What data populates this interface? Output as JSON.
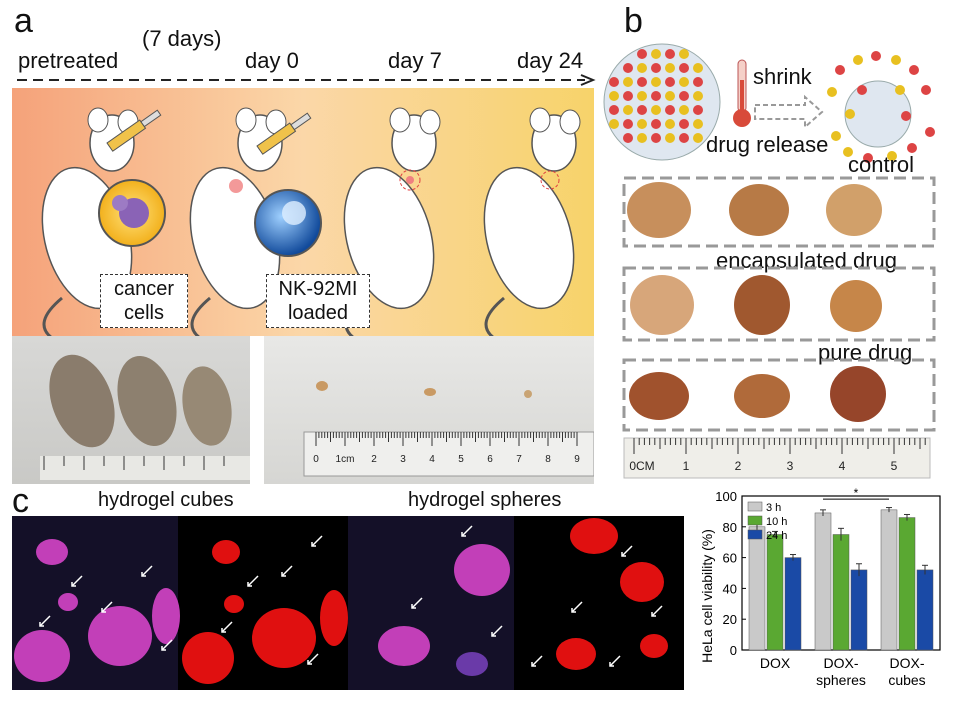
{
  "panel_a": {
    "letter": "a",
    "timeline": [
      {
        "label": "pretreated"
      },
      {
        "label": "(7 days)"
      },
      {
        "label": "day 0"
      },
      {
        "label": "day 7"
      },
      {
        "label": "day 24"
      }
    ],
    "box_cancer": [
      "cancer",
      "cells"
    ],
    "box_nk": [
      "NK-92MI",
      "loaded"
    ],
    "ruler_left_ticks": [
      "0",
      "1cm",
      "2",
      "3",
      "4",
      "5",
      "6",
      "7",
      "8",
      "9"
    ]
  },
  "panel_b": {
    "letter": "b",
    "shrink_label": "shrink",
    "drug_release_label": "drug release",
    "groups": [
      "control",
      "encapsulated drug",
      "pure drug"
    ],
    "ruler_ticks": [
      "0CM",
      "1",
      "2",
      "3",
      "4",
      "5"
    ]
  },
  "panel_c": {
    "letter": "c",
    "captions": [
      "hydrogel cubes",
      "hydrogel spheres"
    ]
  },
  "colors": {
    "bar_3h": "#c9c9c9",
    "bar_10h": "#5aa832",
    "bar_24h": "#1a4aa6",
    "nucleus_magenta": "#c23fb8",
    "nucleus_red": "#e01010",
    "banner_left": "#f5a27a",
    "banner_right": "#f7d36a"
  },
  "chart_data": {
    "type": "bar",
    "categories": [
      "DOX",
      "DOX-\nspheres",
      "DOX-\ncubes"
    ],
    "category_lines": [
      [
        "DOX"
      ],
      [
        "DOX-",
        "spheres"
      ],
      [
        "DOX-",
        "cubes"
      ]
    ],
    "ylabel": "HeLa cell viability (%)",
    "ylim": [
      0,
      100
    ],
    "yticks": [
      0,
      20,
      40,
      60,
      80,
      100
    ],
    "legend_position": "top-left",
    "series": [
      {
        "name": "3 h",
        "color": "#c9c9c9",
        "values": [
          80,
          89,
          91
        ]
      },
      {
        "name": "10 h",
        "color": "#5aa832",
        "values": [
          75,
          75,
          86
        ]
      },
      {
        "name": "24 h",
        "color": "#1a4aa6",
        "values": [
          60,
          52,
          52
        ]
      }
    ],
    "errors": [
      [
        2,
        2,
        1.5
      ],
      [
        2,
        4,
        2
      ],
      [
        2,
        4,
        3
      ]
    ],
    "significance": "*"
  }
}
